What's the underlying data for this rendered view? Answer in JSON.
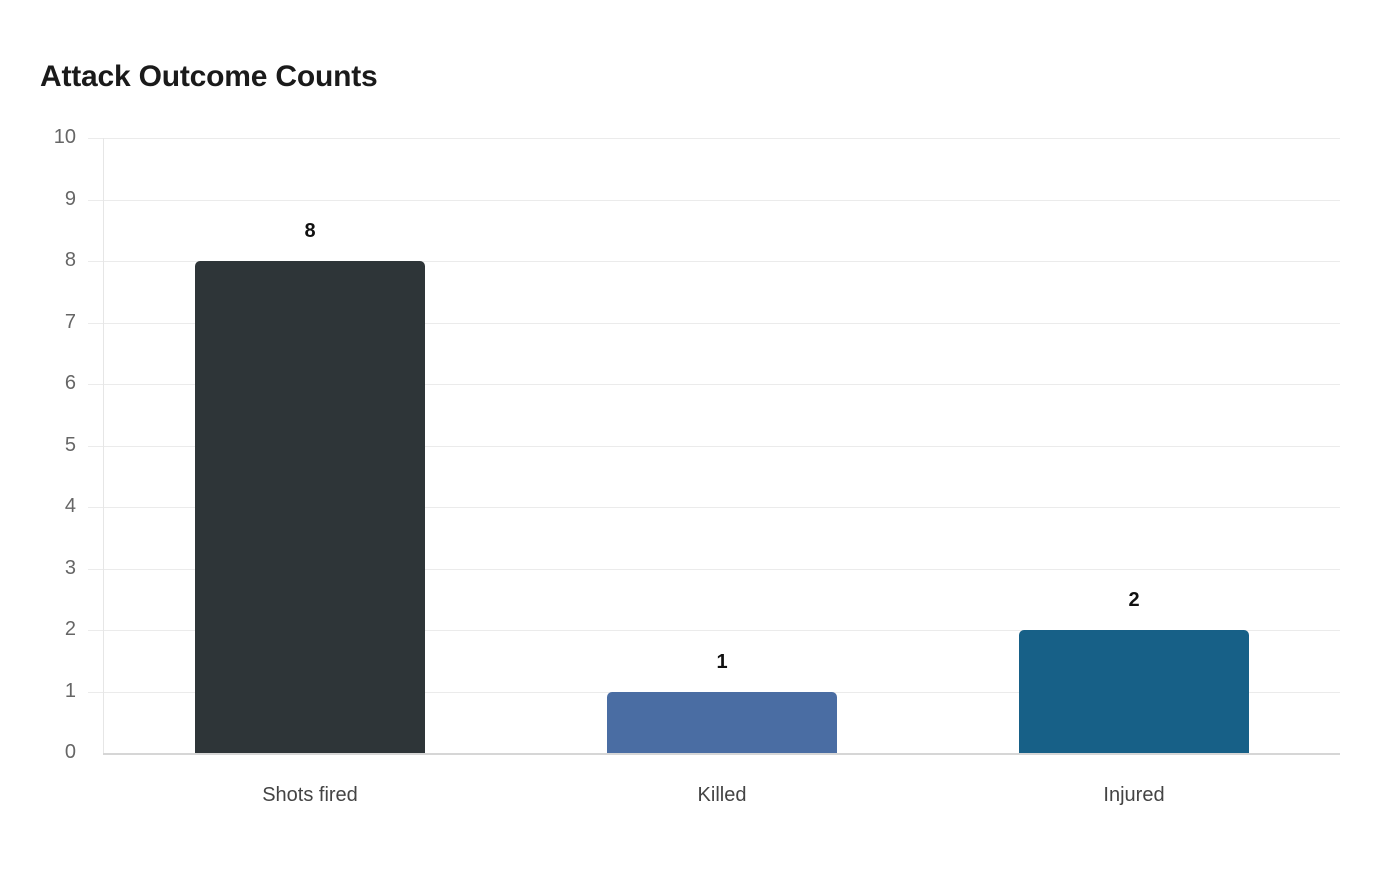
{
  "title": "Attack Outcome Counts",
  "chart_data": {
    "type": "bar",
    "title": "Attack Outcome Counts",
    "categories": [
      "Shots fired",
      "Killed",
      "Injured"
    ],
    "values": [
      8,
      1,
      2
    ],
    "colors": [
      "#2e3538",
      "#4a6da3",
      "#176087"
    ],
    "xlabel": "",
    "ylabel": "",
    "ylim": [
      0,
      10
    ],
    "yticks": [
      "0",
      "1",
      "2",
      "3",
      "4",
      "5",
      "6",
      "7",
      "8",
      "9",
      "10"
    ],
    "grid": true,
    "legend": null,
    "data_labels": [
      "8",
      "1",
      "2"
    ]
  }
}
